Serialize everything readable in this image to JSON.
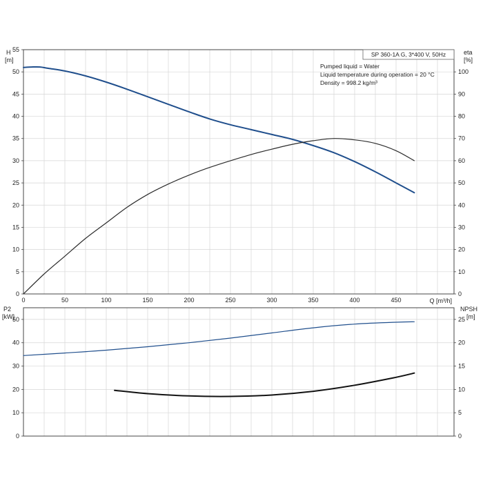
{
  "chart_data": [
    {
      "type": "line",
      "panel": "head-efficiency",
      "title": "SP 360-1A G, 3*400 V, 50Hz",
      "annotations": [
        "Pumped liquid = Water",
        "Liquid temperature during operation = 20 °C",
        "Density = 998.2 kg/m³"
      ],
      "xlabel": "Q [m³/h]",
      "ylabel_left": [
        "H",
        "[m]"
      ],
      "ylabel_right": [
        "eta",
        "[%]"
      ],
      "xlim": [
        0,
        520
      ],
      "ylim_left": [
        0,
        55
      ],
      "ylim_right": [
        0,
        110
      ],
      "x_ticks": [
        0,
        50,
        100,
        150,
        200,
        250,
        300,
        350,
        400,
        450
      ],
      "y_ticks_left": [
        0,
        5,
        10,
        15,
        20,
        25,
        30,
        35,
        40,
        45,
        50,
        55
      ],
      "y_ticks_right": [
        0,
        10,
        20,
        30,
        40,
        50,
        60,
        70,
        80,
        90,
        100
      ],
      "grid": true,
      "series": [
        {
          "axis": "left",
          "color": "#1f4e8c",
          "x": [
            0,
            10,
            20,
            30,
            50,
            75,
            100,
            125,
            150,
            175,
            200,
            225,
            250,
            275,
            300,
            325,
            350,
            375,
            400,
            425,
            450,
            472
          ],
          "y": [
            51,
            51.1,
            51.1,
            50.8,
            50.2,
            49.1,
            47.7,
            46.1,
            44.4,
            42.7,
            41,
            39.4,
            38.1,
            37,
            35.9,
            34.8,
            33.4,
            31.8,
            29.8,
            27.5,
            25,
            22.8
          ]
        },
        {
          "axis": "right",
          "color": "#2b2b2b",
          "x": [
            0,
            25,
            50,
            75,
            100,
            125,
            150,
            175,
            200,
            225,
            250,
            275,
            300,
            325,
            350,
            375,
            400,
            425,
            450,
            472
          ],
          "y": [
            0,
            9,
            17,
            25,
            32,
            39,
            44.8,
            49.5,
            53.5,
            57,
            60,
            62.8,
            65.2,
            67.4,
            69,
            70,
            69.4,
            67.8,
            64.5,
            60
          ]
        }
      ]
    },
    {
      "type": "line",
      "panel": "power-npsh",
      "ylabel_left": [
        "P2",
        "[kW]"
      ],
      "ylabel_right": [
        "NPSH",
        "[m]"
      ],
      "xlim": [
        0,
        520
      ],
      "ylim_left": [
        0,
        55
      ],
      "ylim_right": [
        0,
        27.5
      ],
      "y_ticks_left": [
        0,
        10,
        20,
        30,
        40,
        50
      ],
      "y_ticks_right": [
        0,
        5,
        10,
        15,
        20,
        25
      ],
      "grid": true,
      "series": [
        {
          "axis": "left",
          "color": "#1f4e8c",
          "x": [
            0,
            50,
            100,
            150,
            200,
            250,
            300,
            350,
            400,
            450,
            472
          ],
          "y": [
            34.5,
            35.6,
            36.8,
            38.3,
            40,
            42,
            44.2,
            46.4,
            48,
            48.8,
            49
          ]
        },
        {
          "axis": "right",
          "color": "#111111",
          "x": [
            110,
            150,
            200,
            250,
            300,
            350,
            400,
            450,
            472
          ],
          "y": [
            9.8,
            9.1,
            8.6,
            8.5,
            8.8,
            9.6,
            10.9,
            12.6,
            13.5
          ]
        }
      ]
    }
  ]
}
